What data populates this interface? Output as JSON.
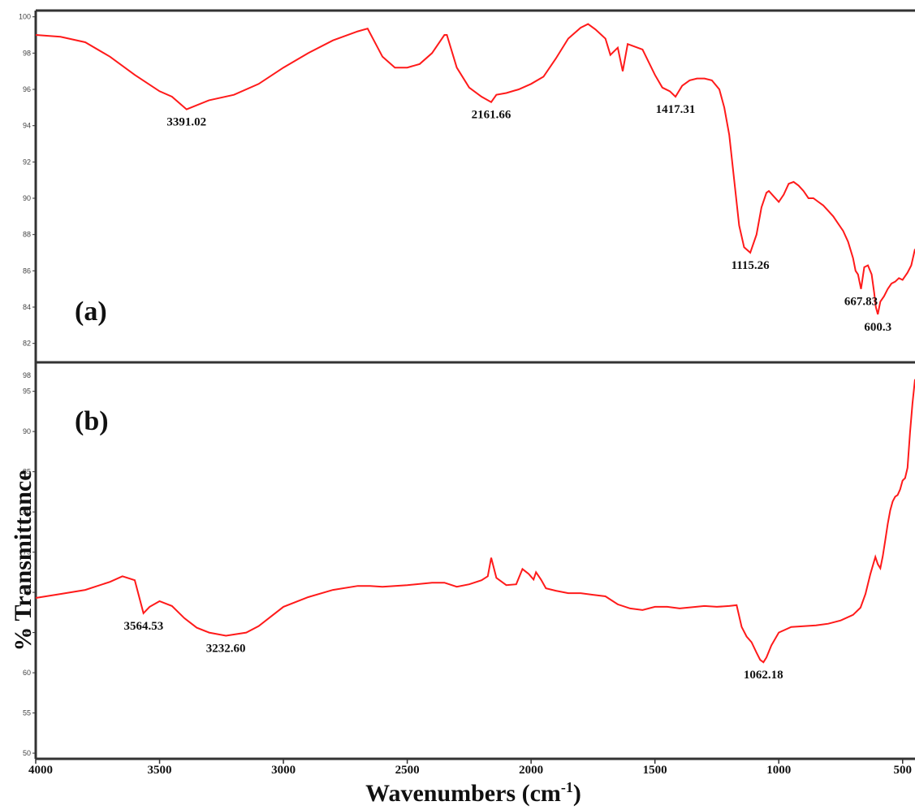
{
  "chart_data": [
    {
      "type": "line",
      "panel_label": "(a)",
      "ylim": [
        81,
        100.3
      ],
      "y_ticks": [
        82,
        84,
        86,
        88,
        90,
        92,
        94,
        96,
        98,
        100
      ],
      "xlim": [
        4000,
        450
      ],
      "x": [
        4000,
        3900,
        3800,
        3700,
        3600,
        3500,
        3450,
        3391,
        3300,
        3200,
        3100,
        3000,
        2900,
        2800,
        2700,
        2660,
        2600,
        2550,
        2500,
        2450,
        2400,
        2350,
        2340,
        2300,
        2250,
        2200,
        2161,
        2140,
        2100,
        2050,
        2000,
        1950,
        1900,
        1850,
        1800,
        1770,
        1740,
        1700,
        1680,
        1650,
        1630,
        1610,
        1590,
        1550,
        1500,
        1470,
        1440,
        1417,
        1390,
        1360,
        1330,
        1300,
        1270,
        1240,
        1220,
        1200,
        1180,
        1160,
        1140,
        1115,
        1090,
        1070,
        1050,
        1040,
        1020,
        1000,
        980,
        960,
        940,
        920,
        900,
        880,
        860,
        840,
        820,
        800,
        780,
        760,
        740,
        720,
        700,
        690,
        680,
        668,
        655,
        640,
        625,
        615,
        608,
        600,
        590,
        575,
        560,
        545,
        530,
        515,
        500,
        480,
        465,
        450
      ],
      "series": [
        {
          "color": "#ff1a1a",
          "values": [
            99,
            98.9,
            98.6,
            97.8,
            96.8,
            95.9,
            95.6,
            94.9,
            95.4,
            95.7,
            96.3,
            97.2,
            98,
            98.7,
            99.2,
            99.35,
            97.8,
            97.2,
            97.2,
            97.4,
            98,
            99,
            99,
            97.2,
            96.1,
            95.6,
            95.3,
            95.7,
            95.8,
            96,
            96.3,
            96.7,
            97.7,
            98.8,
            99.4,
            99.6,
            99.3,
            98.8,
            97.9,
            98.3,
            97,
            98.5,
            98.4,
            98.2,
            96.8,
            96.1,
            95.9,
            95.6,
            96.2,
            96.5,
            96.6,
            96.6,
            96.5,
            96,
            95,
            93.5,
            91,
            88.5,
            87.3,
            87,
            88,
            89.5,
            90.3,
            90.4,
            90.1,
            89.8,
            90.2,
            90.8,
            90.9,
            90.7,
            90.4,
            90,
            90,
            89.8,
            89.6,
            89.3,
            89,
            88.6,
            88.2,
            87.6,
            86.7,
            86,
            85.8,
            85,
            86.2,
            86.3,
            85.8,
            84.8,
            84,
            83.6,
            84.3,
            84.6,
            85,
            85.3,
            85.4,
            85.6,
            85.5,
            85.9,
            86.3,
            87.2
          ]
        }
      ],
      "peaks": [
        {
          "x": 3391,
          "y": 94.9,
          "label": "3391.02"
        },
        {
          "x": 2161,
          "y": 95.3,
          "label": "2161.66"
        },
        {
          "x": 1417,
          "y": 95.6,
          "label": "1417.31"
        },
        {
          "x": 1115,
          "y": 87,
          "label": "1115.26"
        },
        {
          "x": 668,
          "y": 85,
          "label": "667.83"
        },
        {
          "x": 600,
          "y": 83.6,
          "label": "600.3"
        }
      ],
      "peak_labels": [
        "3391.02",
        "2161.66",
        "1417.31",
        "1115.26",
        "667.83",
        "600.3"
      ]
    },
    {
      "type": "line",
      "panel_label": "(b)",
      "ylim": [
        49.5,
        98.5
      ],
      "y_ticks": [
        50,
        55,
        60,
        65,
        70,
        75,
        80,
        85,
        90,
        95
      ],
      "y_ticks_extra": [
        "98"
      ],
      "xlim": [
        4000,
        450
      ],
      "x": [
        4000,
        3900,
        3800,
        3700,
        3650,
        3600,
        3565,
        3540,
        3500,
        3450,
        3400,
        3350,
        3300,
        3232,
        3150,
        3100,
        3050,
        3000,
        2900,
        2800,
        2700,
        2650,
        2600,
        2500,
        2400,
        2350,
        2300,
        2250,
        2200,
        2175,
        2161,
        2140,
        2100,
        2060,
        2035,
        2010,
        1990,
        1980,
        1960,
        1940,
        1900,
        1850,
        1800,
        1750,
        1700,
        1650,
        1600,
        1550,
        1500,
        1450,
        1400,
        1300,
        1250,
        1200,
        1170,
        1150,
        1130,
        1110,
        1090,
        1075,
        1062,
        1050,
        1030,
        1000,
        950,
        900,
        850,
        800,
        750,
        700,
        670,
        650,
        630,
        610,
        600,
        590,
        580,
        570,
        560,
        550,
        540,
        530,
        520,
        510,
        500,
        490,
        480,
        470,
        460,
        450
      ],
      "series": [
        {
          "color": "#ff1a1a",
          "values": [
            69.3,
            69.8,
            70.3,
            71.3,
            72,
            71.5,
            67.4,
            68.2,
            68.9,
            68.3,
            66.8,
            65.6,
            65,
            64.6,
            65,
            65.8,
            67,
            68.2,
            69.4,
            70.3,
            70.8,
            70.8,
            70.7,
            70.9,
            71.2,
            71.2,
            70.7,
            71,
            71.5,
            72,
            74.3,
            71.8,
            70.9,
            71,
            72.9,
            72.3,
            71.6,
            72.5,
            71.6,
            70.5,
            70.2,
            69.9,
            69.9,
            69.7,
            69.5,
            68.5,
            68,
            67.8,
            68.2,
            68.2,
            68,
            68.3,
            68.2,
            68.3,
            68.4,
            65.7,
            64.5,
            63.8,
            62.5,
            61.6,
            61.3,
            61.9,
            63.4,
            65,
            65.7,
            65.8,
            65.9,
            66.1,
            66.5,
            67.2,
            68.1,
            69.8,
            72.3,
            74.4,
            73.5,
            73,
            74.5,
            76.5,
            78.5,
            80.2,
            81.3,
            81.9,
            82.1,
            82.8,
            83.9,
            84.2,
            85.5,
            89.9,
            93.5,
            96.5
          ]
        }
      ],
      "peaks": [
        {
          "x": 3564.53,
          "y": 67.4,
          "label": "3564.53"
        },
        {
          "x": 3232.6,
          "y": 64.6,
          "label": "3232.60"
        },
        {
          "x": 1062.18,
          "y": 61.3,
          "label": "1062.18"
        }
      ],
      "peak_labels": [
        "3564.53",
        "3232.60",
        "1062.18"
      ]
    }
  ],
  "x_ticks": [
    "4000",
    "3500",
    "3000",
    "2500",
    "2000",
    "1500",
    "1000",
    "500"
  ],
  "x_tick_values": [
    4000,
    3500,
    3000,
    2500,
    2000,
    1500,
    1000,
    500
  ],
  "ylabel": "% Transmittance",
  "xlabel_main": "Wavenumbers (cm",
  "xlabel_sup": "-1",
  "xlabel_end": ")"
}
